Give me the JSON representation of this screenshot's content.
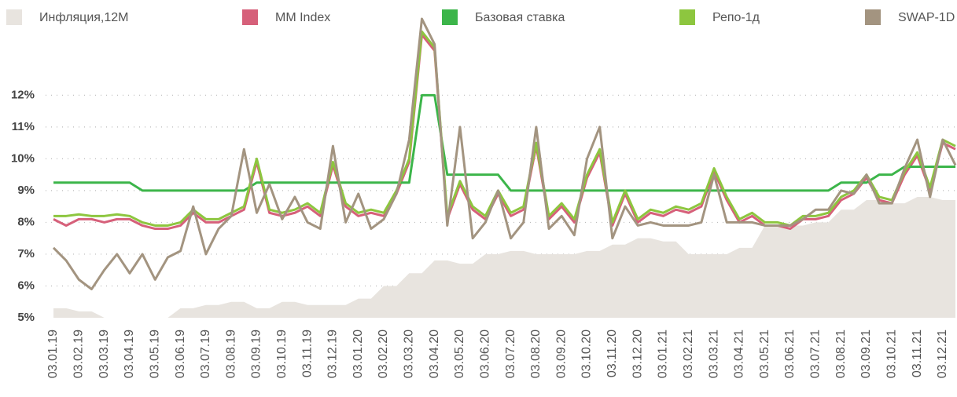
{
  "chart_data": {
    "type": "line",
    "categories": [
      "03.01.19",
      null,
      "03.02.19",
      null,
      "03.03.19",
      null,
      "03.04.19",
      null,
      "03.05.19",
      null,
      "03.06.19",
      null,
      "03.07.19",
      null,
      "03.08.19",
      null,
      "03.09.19",
      null,
      "03.10.19",
      null,
      "03.11.19",
      null,
      "03.12.19",
      null,
      "03.01.20",
      null,
      "03.02.20",
      null,
      "03.03.20",
      null,
      "03.04.20",
      null,
      "03.05.20",
      null,
      "03.06.20",
      null,
      "03.07.20",
      null,
      "03.08.20",
      null,
      "03.09.20",
      null,
      "03.10.20",
      null,
      "03.11.20",
      null,
      "03.12.20",
      null,
      "03.01.21",
      null,
      "03.02.21",
      null,
      "03.03.21",
      null,
      "03.04.21",
      null,
      "03.05.21",
      null,
      "03.06.21",
      null,
      "03.07.21",
      null,
      "03.08.21",
      null,
      "03.09.21",
      null,
      "03.10.21",
      null,
      "03.11.21",
      null,
      "03.12.21",
      null
    ],
    "series": [
      {
        "name": "Инфляция,12M",
        "color": "#e8e4df",
        "style": "area",
        "values": [
          5.3,
          5.3,
          5.2,
          5.2,
          5.0,
          5.0,
          5.0,
          5.0,
          5.0,
          5.0,
          5.3,
          5.3,
          5.4,
          5.4,
          5.5,
          5.5,
          5.3,
          5.3,
          5.5,
          5.5,
          5.4,
          5.4,
          5.4,
          5.4,
          5.6,
          5.6,
          6.0,
          6.0,
          6.4,
          6.4,
          6.8,
          6.8,
          6.7,
          6.7,
          7.0,
          7.0,
          7.1,
          7.1,
          7.0,
          7.0,
          7.0,
          7.0,
          7.1,
          7.1,
          7.3,
          7.3,
          7.5,
          7.5,
          7.4,
          7.4,
          7.0,
          7.0,
          7.0,
          7.0,
          7.2,
          7.2,
          7.9,
          7.9,
          7.9,
          7.9,
          8.0,
          8.0,
          8.4,
          8.4,
          8.7,
          8.7,
          8.6,
          8.6,
          8.8,
          8.8,
          8.7,
          8.7
        ]
      },
      {
        "name": "MM Index",
        "color": "#d6607a",
        "values": [
          8.1,
          7.9,
          8.1,
          8.1,
          8.0,
          8.1,
          8.1,
          7.9,
          7.8,
          7.8,
          7.9,
          8.3,
          8.0,
          8.0,
          8.2,
          8.4,
          9.9,
          8.3,
          8.2,
          8.3,
          8.5,
          8.2,
          9.8,
          8.5,
          8.2,
          8.3,
          8.2,
          8.9,
          9.9,
          13.9,
          13.4,
          8.1,
          9.2,
          8.4,
          8.1,
          8.9,
          8.2,
          8.4,
          10.4,
          8.1,
          8.5,
          8.0,
          9.4,
          10.2,
          7.9,
          8.9,
          8.0,
          8.3,
          8.2,
          8.4,
          8.3,
          8.5,
          9.6,
          8.7,
          8.0,
          8.2,
          7.9,
          7.9,
          7.8,
          8.1,
          8.1,
          8.2,
          8.7,
          8.9,
          9.4,
          8.7,
          8.6,
          9.5,
          10.1,
          9.0,
          10.5,
          10.3
        ]
      },
      {
        "name": "Базовая ставка",
        "color": "#3cb54a",
        "values": [
          9.25,
          9.25,
          9.25,
          9.25,
          9.25,
          9.25,
          9.25,
          9.0,
          9.0,
          9.0,
          9.0,
          9.0,
          9.0,
          9.0,
          9.0,
          9.0,
          9.25,
          9.25,
          9.25,
          9.25,
          9.25,
          9.25,
          9.25,
          9.25,
          9.25,
          9.25,
          9.25,
          9.25,
          9.25,
          12.0,
          12.0,
          9.5,
          9.5,
          9.5,
          9.5,
          9.5,
          9.0,
          9.0,
          9.0,
          9.0,
          9.0,
          9.0,
          9.0,
          9.0,
          9.0,
          9.0,
          9.0,
          9.0,
          9.0,
          9.0,
          9.0,
          9.0,
          9.0,
          9.0,
          9.0,
          9.0,
          9.0,
          9.0,
          9.0,
          9.0,
          9.0,
          9.0,
          9.25,
          9.25,
          9.25,
          9.5,
          9.5,
          9.75,
          9.75,
          9.75,
          9.75,
          9.75
        ]
      },
      {
        "name": "Репо-1д",
        "color": "#8dc63f",
        "values": [
          8.2,
          8.2,
          8.25,
          8.2,
          8.2,
          8.25,
          8.2,
          8.0,
          7.9,
          7.9,
          8.0,
          8.4,
          8.1,
          8.1,
          8.3,
          8.5,
          10.0,
          8.4,
          8.3,
          8.4,
          8.6,
          8.3,
          9.9,
          8.6,
          8.3,
          8.4,
          8.3,
          9.0,
          10.0,
          14.0,
          13.5,
          8.2,
          9.3,
          8.5,
          8.2,
          9.0,
          8.3,
          8.5,
          10.5,
          8.2,
          8.6,
          8.1,
          9.5,
          10.3,
          8.0,
          9.0,
          8.1,
          8.4,
          8.3,
          8.5,
          8.4,
          8.6,
          9.7,
          8.8,
          8.1,
          8.3,
          8.0,
          8.0,
          7.9,
          8.2,
          8.2,
          8.3,
          8.8,
          9.0,
          9.5,
          8.8,
          8.7,
          9.6,
          10.2,
          9.1,
          10.6,
          10.4
        ]
      },
      {
        "name": "SWAP-1D",
        "color": "#a39480",
        "values": [
          7.2,
          6.8,
          6.2,
          5.9,
          6.5,
          7.0,
          6.4,
          7.0,
          6.2,
          6.9,
          7.1,
          8.5,
          7.0,
          7.8,
          8.2,
          10.3,
          8.3,
          9.2,
          8.1,
          8.8,
          8.0,
          7.8,
          10.4,
          8.0,
          8.9,
          7.8,
          8.1,
          8.9,
          10.6,
          14.4,
          13.6,
          7.9,
          11.0,
          7.5,
          8.0,
          9.0,
          7.5,
          8.0,
          11.0,
          7.8,
          8.2,
          7.6,
          10.0,
          11.0,
          7.5,
          8.5,
          7.9,
          8.0,
          7.9,
          7.9,
          7.9,
          8.0,
          9.5,
          8.0,
          8.0,
          8.0,
          7.9,
          7.9,
          7.9,
          8.1,
          8.4,
          8.4,
          9.0,
          8.9,
          9.5,
          8.6,
          8.6,
          9.7,
          10.6,
          8.8,
          10.6,
          9.8
        ]
      }
    ],
    "ylim": [
      5,
      14.5
    ],
    "yticks": [
      {
        "value": 5,
        "label": "5%"
      },
      {
        "value": 6,
        "label": "6%"
      },
      {
        "value": 7,
        "label": "7%"
      },
      {
        "value": 8,
        "label": "8%"
      },
      {
        "value": 9,
        "label": "9%"
      },
      {
        "value": 10,
        "label": "10%"
      },
      {
        "value": 11,
        "label": "11%"
      },
      {
        "value": 12,
        "label": "12%"
      }
    ],
    "grid": true,
    "legend": "top"
  }
}
